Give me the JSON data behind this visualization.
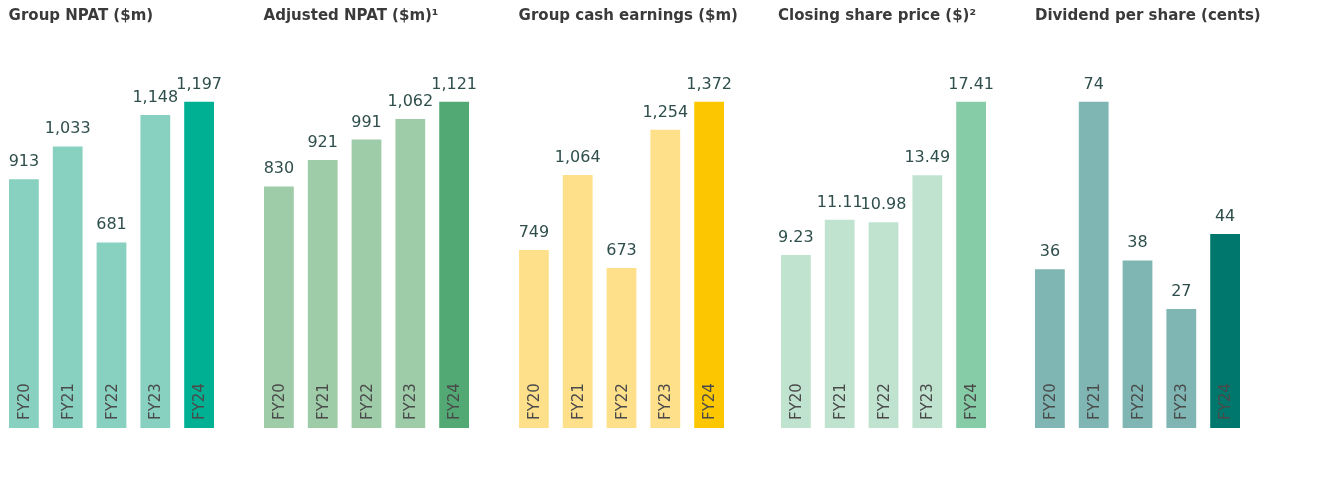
{
  "chart_data": [
    {
      "type": "bar",
      "title": "Group NPAT ($m)",
      "categories": [
        "FY20",
        "FY21",
        "FY22",
        "FY23",
        "FY24"
      ],
      "values": [
        913,
        1033,
        681,
        1148,
        1197
      ],
      "value_labels": [
        "913",
        "1,033",
        "681",
        "1,148",
        "1,197"
      ],
      "colors": [
        "#88d1c0",
        "#88d1c0",
        "#88d1c0",
        "#88d1c0",
        "#00b092"
      ]
    },
    {
      "type": "bar",
      "title": "Adjusted NPAT ($m)¹",
      "categories": [
        "FY20",
        "FY21",
        "FY22",
        "FY23",
        "FY24"
      ],
      "values": [
        830,
        921,
        991,
        1062,
        1121
      ],
      "value_labels": [
        "830",
        "921",
        "991",
        "1,062",
        "1,121"
      ],
      "colors": [
        "#9ecba8",
        "#9ecba8",
        "#9ecba8",
        "#9ecba8",
        "#52a974"
      ]
    },
    {
      "type": "bar",
      "title": "Group cash earnings ($m)",
      "categories": [
        "FY20",
        "FY21",
        "FY22",
        "FY23",
        "FY24"
      ],
      "values": [
        749,
        1064,
        673,
        1254,
        1372
      ],
      "value_labels": [
        "749",
        "1,064",
        "673",
        "1,254",
        "1,372"
      ],
      "colors": [
        "#fedf8a",
        "#fedf8a",
        "#fedf8a",
        "#fedf8a",
        "#fcc700"
      ]
    },
    {
      "type": "bar",
      "title": "Closing share price ($)²",
      "categories": [
        "FY20",
        "FY21",
        "FY22",
        "FY23",
        "FY24"
      ],
      "values": [
        9.23,
        11.11,
        10.98,
        13.49,
        17.41
      ],
      "data_labels": true,
      "colors": [
        "#c0e3d0",
        "#c0e3d0",
        "#c0e3d0",
        "#c0e3d0",
        "#86cca7"
      ]
    },
    {
      "type": "bar",
      "title": "Dividend per share (cents)",
      "categories": [
        "FY20",
        "FY21",
        "FY22",
        "FY23",
        "FY24"
      ],
      "values": [
        36,
        74,
        38,
        27,
        44
      ],
      "data_labels": true,
      "colors": [
        "#7fb5b2",
        "#7fb5b2",
        "#7fb5b2",
        "#7fb5b2",
        "#00776c"
      ]
    }
  ]
}
